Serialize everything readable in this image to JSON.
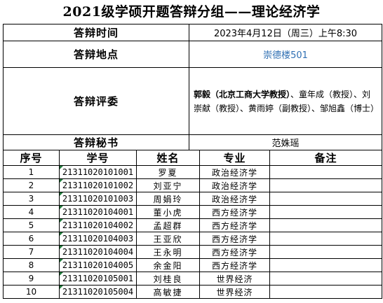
{
  "title": "2021级学硕开题答辩分组——理论经济学",
  "info": {
    "time_label": "答辩时间",
    "time_value": "2023年4月12日（周三）上午8:30",
    "place_label": "答辩地点",
    "place_value": "崇德楼501",
    "committee_label": "答辩评委",
    "committee_lead": "郭毅（北京工商大学教授）",
    "committee_rest": "、童年成（教授）、刘崇献（教授）、黄雨婷（副教授）、邹旭鑫（博士）",
    "secretary_label": "答辩秘书",
    "secretary_value": "范姝瑶"
  },
  "columns": {
    "seq": "序号",
    "sid": "学号",
    "name": "姓名",
    "major": "专业",
    "note": "备注"
  },
  "students": [
    {
      "seq": "1",
      "sid": "21311020101001",
      "name": "罗夏",
      "major": "政治经济学",
      "note": ""
    },
    {
      "seq": "2",
      "sid": "21311020101002",
      "name": "刘亚宁",
      "major": "政治经济学",
      "note": ""
    },
    {
      "seq": "3",
      "sid": "21311020101003",
      "name": "周娟玲",
      "major": "政治经济学",
      "note": ""
    },
    {
      "seq": "4",
      "sid": "21311020104001",
      "name": "董小虎",
      "major": "西方经济学",
      "note": ""
    },
    {
      "seq": "5",
      "sid": "21311020104002",
      "name": "孟超群",
      "major": "西方经济学",
      "note": ""
    },
    {
      "seq": "6",
      "sid": "21311020104003",
      "name": "王亚欣",
      "major": "西方经济学",
      "note": ""
    },
    {
      "seq": "7",
      "sid": "21311020104004",
      "name": "王永明",
      "major": "西方经济学",
      "note": ""
    },
    {
      "seq": "8",
      "sid": "21311020104005",
      "name": "余金阳",
      "major": "西方经济学",
      "note": ""
    },
    {
      "seq": "9",
      "sid": "21311020105001",
      "name": "刘桂良",
      "major": "世界经济",
      "note": ""
    },
    {
      "seq": "10",
      "sid": "21311020105004",
      "name": "高敏捷",
      "major": "世界经济",
      "note": ""
    }
  ],
  "colors": {
    "link_blue": "#2f6fb3",
    "cell_marker_green": "#1f7a3a"
  }
}
